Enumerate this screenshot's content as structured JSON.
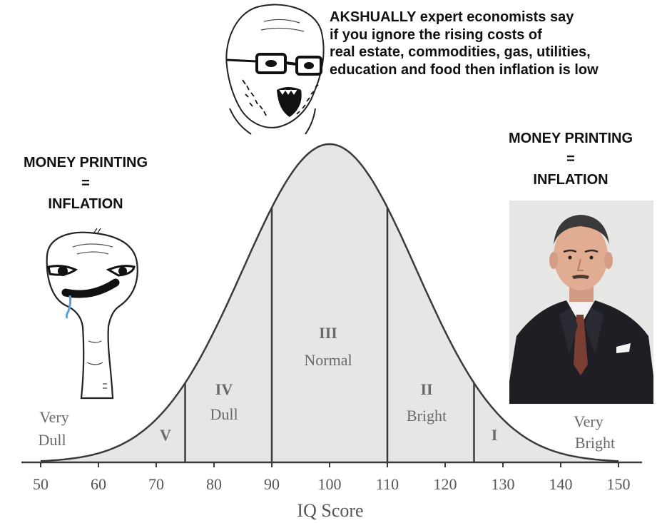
{
  "meme": {
    "top_text": "AKSHUALLY expert economists say\nif you ignore the rising costs of\nreal estate, commodities, gas, utilities,\neducation and food then inflation is low",
    "left_text": "MONEY PRINTING\n=\nINFLATION",
    "right_text": "MONEY PRINTING\n=\nINFLATION"
  },
  "chart_data": {
    "type": "area",
    "distribution": "normal",
    "mean": 100,
    "sd": 15,
    "xlabel": "IQ Score",
    "xlim": [
      50,
      150
    ],
    "xticks": [
      "50",
      "60",
      "70",
      "80",
      "90",
      "100",
      "110",
      "120",
      "130",
      "140",
      "150"
    ],
    "dividers": [
      75,
      90,
      110,
      125
    ],
    "regions": [
      {
        "numeral": "V",
        "name": ""
      },
      {
        "numeral": "IV",
        "name": "Dull"
      },
      {
        "numeral": "III",
        "name": "Normal"
      },
      {
        "numeral": "II",
        "name": "Bright"
      },
      {
        "numeral": "I",
        "name": ""
      }
    ],
    "tail_labels": {
      "left": [
        "Very",
        "Dull"
      ],
      "right": [
        "Very",
        "Bright"
      ]
    }
  },
  "colors": {
    "curve": "#3a3a3a",
    "fill": "#e6e6e6",
    "text": "#555555",
    "caption": "#111111"
  }
}
